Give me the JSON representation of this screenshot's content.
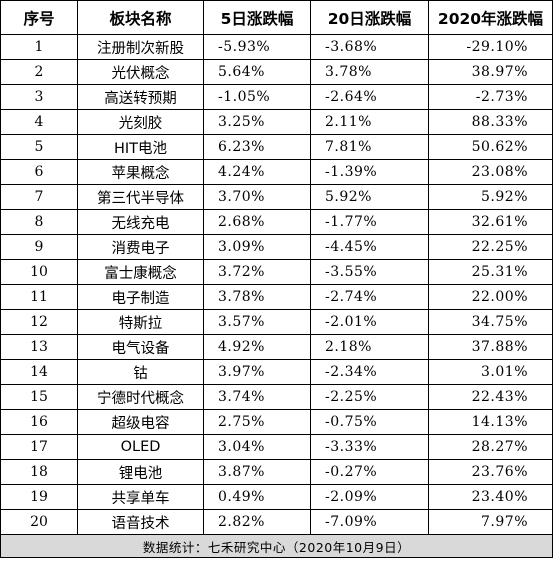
{
  "headers": [
    "序号",
    "板块名称",
    "5日涨跌幅",
    "20日涨跌幅",
    "2020年涨跌幅"
  ],
  "rows": [
    [
      "1",
      "注册制次新股",
      "-5.93%",
      "-3.68%",
      "-29.10%"
    ],
    [
      "2",
      "光伏概念",
      "5.64%",
      "3.78%",
      "38.97%"
    ],
    [
      "3",
      "高送转预期",
      "-1.05%",
      "-2.64%",
      "-2.73%"
    ],
    [
      "4",
      "光刻胶",
      "3.25%",
      "2.11%",
      "88.33%"
    ],
    [
      "5",
      "HIT电池",
      "6.23%",
      "7.81%",
      "50.62%"
    ],
    [
      "6",
      "苹果概念",
      "4.24%",
      "-1.39%",
      "23.08%"
    ],
    [
      "7",
      "第三代半导体",
      "3.70%",
      "5.92%",
      "5.92%"
    ],
    [
      "8",
      "无线充电",
      "2.68%",
      "-1.77%",
      "32.61%"
    ],
    [
      "9",
      "消费电子",
      "3.09%",
      "-4.45%",
      "22.25%"
    ],
    [
      "10",
      "富士康概念",
      "3.72%",
      "-3.55%",
      "25.31%"
    ],
    [
      "11",
      "电子制造",
      "3.78%",
      "-2.74%",
      "22.00%"
    ],
    [
      "12",
      "特斯拉",
      "3.57%",
      "-2.01%",
      "34.75%"
    ],
    [
      "13",
      "电气设备",
      "4.92%",
      "2.18%",
      "37.88%"
    ],
    [
      "14",
      "钴",
      "3.97%",
      "-2.34%",
      "3.01%"
    ],
    [
      "15",
      "宁德时代概念",
      "3.74%",
      "-2.25%",
      "22.43%"
    ],
    [
      "16",
      "超级电容",
      "2.75%",
      "-0.75%",
      "14.13%"
    ],
    [
      "17",
      "OLED",
      "3.04%",
      "-3.33%",
      "28.27%"
    ],
    [
      "18",
      "锂电池",
      "3.87%",
      "-0.27%",
      "23.76%"
    ],
    [
      "19",
      "共享单车",
      "0.49%",
      "-2.09%",
      "23.40%"
    ],
    [
      "20",
      "语音技术",
      "2.82%",
      "-7.09%",
      "7.97%"
    ]
  ],
  "footer": "数据统计：七禾研究中心（2020年10月9日）",
  "colors": {
    "border": "#000000",
    "footer_bg": "#d9d9d9",
    "background": "#ffffff"
  }
}
